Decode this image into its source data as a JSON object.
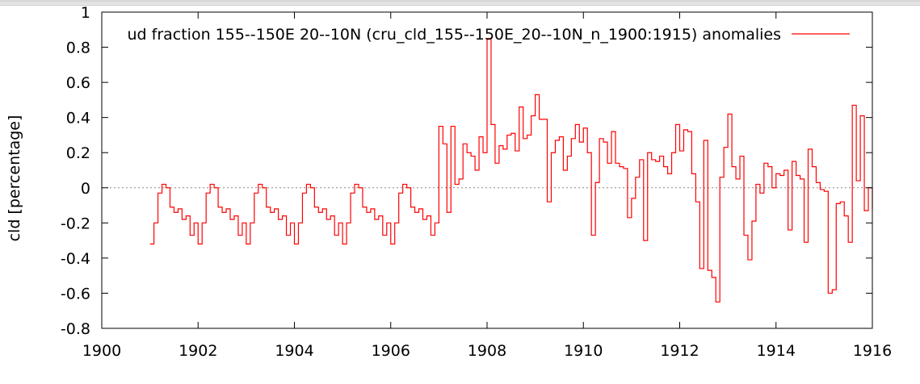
{
  "chart_data": {
    "type": "line",
    "title": "ud fraction 155--150E 20--10N (cru_cld_155--150E_20--10N_n_1900:1915) anomalies",
    "xlabel": "",
    "ylabel": "cld [percentage]",
    "xlim": [
      1900,
      1916
    ],
    "ylim": [
      -0.8,
      1
    ],
    "x_ticks": [
      "1900",
      "1902",
      "1904",
      "1906",
      "1908",
      "1910",
      "1912",
      "1914",
      "1916"
    ],
    "y_ticks": [
      "-0.8",
      "-0.6",
      "-0.4",
      "-0.2",
      "0",
      "0.2",
      "0.4",
      "0.6",
      "0.8",
      "1"
    ],
    "grid": false,
    "zero_line": true,
    "step": true,
    "legend": "top-right",
    "series": [
      {
        "name": "",
        "color": "#ff0000",
        "start": 1901.0,
        "step_size": 0.0833333,
        "values": [
          -0.32,
          -0.2,
          -0.03,
          0.02,
          0.0,
          -0.11,
          -0.14,
          -0.12,
          -0.18,
          -0.16,
          -0.27,
          -0.2,
          -0.32,
          -0.2,
          -0.03,
          0.02,
          0.0,
          -0.11,
          -0.14,
          -0.12,
          -0.18,
          -0.16,
          -0.27,
          -0.2,
          -0.32,
          -0.2,
          -0.03,
          0.02,
          0.0,
          -0.11,
          -0.14,
          -0.12,
          -0.18,
          -0.16,
          -0.27,
          -0.2,
          -0.32,
          -0.2,
          -0.03,
          0.02,
          0.0,
          -0.11,
          -0.14,
          -0.12,
          -0.18,
          -0.16,
          -0.27,
          -0.2,
          -0.32,
          -0.2,
          -0.03,
          0.02,
          0.0,
          -0.11,
          -0.14,
          -0.12,
          -0.18,
          -0.16,
          -0.27,
          -0.2,
          -0.32,
          -0.2,
          -0.03,
          0.02,
          0.0,
          -0.11,
          -0.14,
          -0.12,
          -0.18,
          -0.16,
          -0.27,
          -0.2,
          0.35,
          0.25,
          -0.14,
          0.35,
          0.02,
          0.05,
          0.25,
          0.2,
          0.18,
          0.1,
          0.29,
          0.2,
          0.85,
          0.36,
          0.14,
          0.24,
          0.22,
          0.3,
          0.31,
          0.21,
          0.46,
          0.28,
          0.3,
          0.41,
          0.53,
          0.39,
          0.39,
          -0.08,
          0.2,
          0.27,
          0.29,
          0.1,
          0.18,
          0.28,
          0.36,
          0.26,
          0.34,
          0.2,
          -0.27,
          0.03,
          0.28,
          0.26,
          0.14,
          0.32,
          0.14,
          0.12,
          0.11,
          -0.17,
          -0.06,
          0.06,
          0.16,
          -0.3,
          0.2,
          0.16,
          0.15,
          0.18,
          0.12,
          0.08,
          0.2,
          0.36,
          0.21,
          0.33,
          0.32,
          0.08,
          -0.08,
          -0.46,
          0.27,
          -0.47,
          -0.51,
          -0.65,
          0.06,
          0.23,
          0.42,
          0.12,
          0.05,
          0.18,
          -0.27,
          -0.41,
          -0.19,
          0.02,
          -0.03,
          0.14,
          0.12,
          0.0,
          0.08,
          0.07,
          0.1,
          -0.24,
          0.15,
          0.07,
          0.05,
          -0.31,
          0.22,
          0.12,
          0.03,
          -0.01,
          -0.02,
          -0.6,
          -0.58,
          -0.09,
          -0.08,
          -0.16,
          -0.31,
          0.47,
          0.04,
          0.41,
          -0.13,
          0.0,
          -0.12
        ]
      }
    ]
  }
}
